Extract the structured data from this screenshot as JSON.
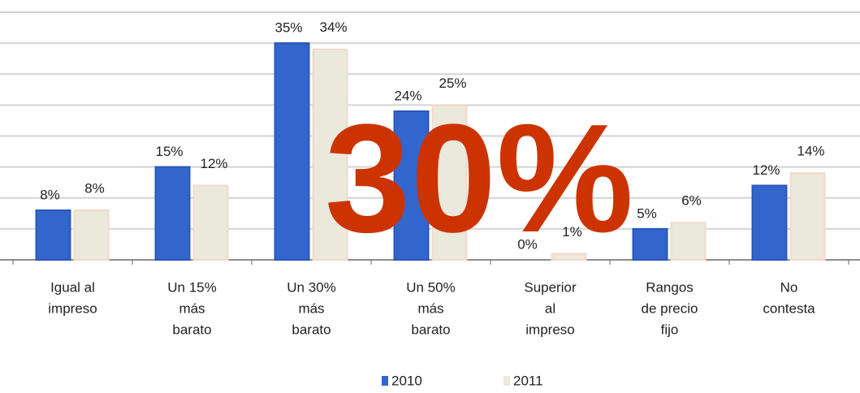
{
  "chart_data": {
    "type": "bar",
    "categories": [
      [
        "Igual al",
        "impreso"
      ],
      [
        "Un 15%",
        "más",
        "barato"
      ],
      [
        "Un 30%",
        "más",
        "barato"
      ],
      [
        "Un 50%",
        "más",
        "barato"
      ],
      [
        "Superior",
        "al",
        "impreso"
      ],
      [
        "Rangos",
        "de precio",
        "fijo"
      ],
      [
        "No",
        "contesta"
      ]
    ],
    "series": [
      {
        "name": "2010",
        "color": "#3366cc",
        "values": [
          8,
          15,
          35,
          24,
          0,
          5,
          12
        ],
        "value_labels": [
          "8%",
          "15%",
          "35%",
          "24%",
          "0%",
          "5%",
          "12%"
        ]
      },
      {
        "name": "2011",
        "color": "#ebe8dc",
        "values": [
          8,
          12,
          34,
          25,
          1,
          6,
          14
        ],
        "value_labels": [
          "8%",
          "12%",
          "34%",
          "25%",
          "1%",
          "6%",
          "14%"
        ]
      }
    ],
    "ylim": [
      0,
      40
    ],
    "yticks": [
      0,
      5,
      10,
      15,
      20,
      25,
      30,
      35,
      40
    ],
    "grid": true,
    "annotation": "30%"
  }
}
